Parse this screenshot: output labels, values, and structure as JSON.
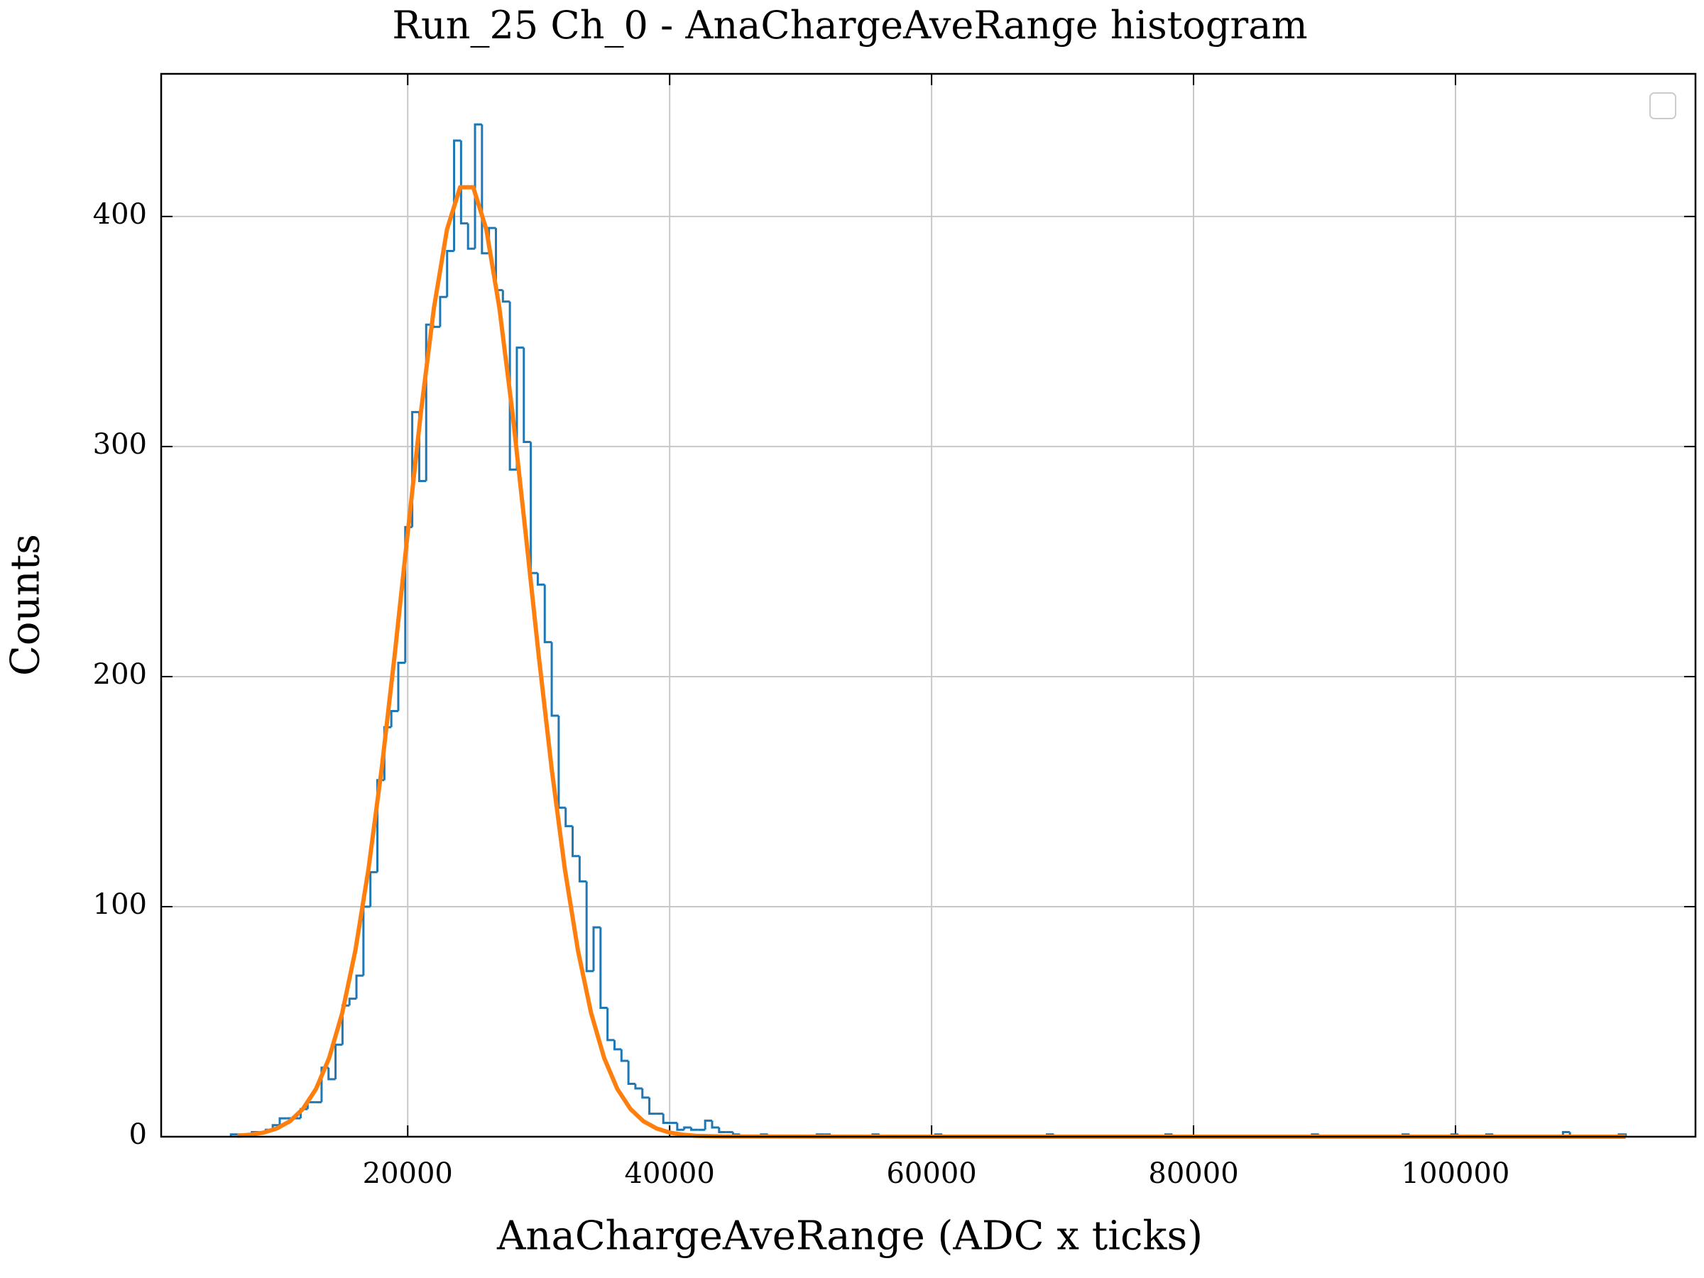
{
  "chart_data": {
    "type": "histogram",
    "title": "Run_25 Ch_0 - AnaChargeAveRange histogram",
    "x_label": "AnaChargeAveRange (ADC x ticks)",
    "y_label": "Counts",
    "color": "#1f77b4",
    "grid": true,
    "legend": "upper right",
    "xlim": [
      1175,
      118325
    ],
    "ylim": [
      0,
      462
    ],
    "xticks": [
      20000,
      40000,
      60000,
      80000,
      100000
    ],
    "yticks": [
      0,
      100,
      200,
      300,
      400
    ],
    "bins": [
      6500,
      7032.5,
      7565,
      8097.5,
      8630,
      9162.5,
      9695,
      10227.5,
      10760,
      11292.5,
      11825,
      12357.5,
      12890,
      13422.5,
      13955,
      14487.5,
      15020,
      15552.5,
      16085,
      16617.5,
      17150,
      17682.5,
      18215,
      18747.5,
      19280,
      19812.5,
      20345,
      20877.5,
      21410,
      21942.5,
      22475,
      23007.5,
      23540,
      24072.5,
      24605,
      25137.5,
      25670,
      26202.5,
      26735,
      27267.5,
      27800,
      28332.5,
      28865,
      29397.5,
      29930,
      30462.5,
      30995,
      31527.5,
      32060,
      32592.5,
      33125,
      33657.5,
      34190,
      34722.5,
      35255,
      35787.5,
      36320,
      36852.5,
      37385,
      37917.5,
      38450,
      38982.5,
      39515,
      40047.5,
      40580,
      41112.5,
      41645,
      42177.5,
      42710,
      43242.5,
      43775,
      44307.5,
      44840,
      45372.5,
      45905,
      46437.5,
      46970,
      47502.5,
      48035,
      48567.5,
      49100,
      49632.5,
      50165,
      50697.5,
      51230,
      51762.5,
      52295,
      52827.5,
      53360,
      53892.5,
      54425,
      54957.5,
      55490,
      56022.5,
      56555,
      57087.5,
      57620,
      58152.5,
      58685,
      59217.5,
      59750,
      60282.5,
      60815,
      61347.5,
      61880,
      62412.5,
      62945,
      63477.5,
      64010,
      64542.5,
      65075,
      65607.5,
      66140,
      66672.5,
      67205,
      67737.5,
      68270,
      68802.5,
      69335,
      69867.5,
      70400,
      70932.5,
      71465,
      71997.5,
      72530,
      73062.5,
      73595,
      74127.5,
      74660,
      75192.5,
      75725,
      76257.5,
      76790,
      77322.5,
      77855,
      78387.5,
      78920,
      79452.5,
      79985,
      80517.5,
      81050,
      81582.5,
      82115,
      82647.5,
      83180,
      83712.5,
      84245,
      84777.5,
      85310,
      85842.5,
      86375,
      86907.5,
      87440,
      87972.5,
      88505,
      89037.5,
      89570,
      90102.5,
      90635,
      91167.5,
      91700,
      92232.5,
      92765,
      93297.5,
      93830,
      94362.5,
      94895,
      95427.5,
      95960,
      96492.5,
      97025,
      97557.5,
      98090,
      98622.5,
      99155,
      99687.5,
      100220,
      100752.5,
      101285,
      101817.5,
      102350,
      102882.5,
      103415,
      103947.5,
      104480,
      105012.5,
      105545,
      106077.5,
      106610,
      107142.5,
      107675,
      108207.5,
      108740,
      109272.5,
      109805,
      110337.5,
      110870,
      111402.5,
      111935,
      112467.5,
      113000
    ],
    "counts": [
      1,
      1,
      1,
      2,
      2,
      3,
      5,
      8,
      8,
      8,
      12,
      15,
      15,
      30,
      25,
      40,
      57,
      60,
      70,
      100,
      115,
      155,
      178,
      185,
      206,
      265,
      315,
      285,
      353,
      352,
      365,
      385,
      433,
      397,
      386,
      440,
      384,
      395,
      368,
      363,
      290,
      343,
      302,
      245,
      240,
      215,
      183,
      143,
      135,
      122,
      111,
      72,
      91,
      56,
      42,
      38,
      33,
      23,
      21,
      17,
      10,
      10,
      6,
      6,
      3,
      4,
      3,
      3,
      7,
      4,
      2,
      2,
      1,
      0,
      0,
      0,
      1,
      0,
      0,
      0,
      0,
      0,
      0,
      0,
      1,
      1,
      0,
      0,
      0,
      0,
      0,
      0,
      1,
      0,
      0,
      0,
      0,
      0,
      0,
      0,
      0,
      1,
      0,
      0,
      0,
      0,
      0,
      0,
      0,
      0,
      0,
      0,
      0,
      0,
      0,
      0,
      0,
      1,
      0,
      0,
      0,
      0,
      0,
      0,
      0,
      0,
      0,
      0,
      0,
      0,
      0,
      0,
      0,
      0,
      1,
      0,
      0,
      0,
      0,
      0,
      0,
      0,
      0,
      0,
      0,
      0,
      0,
      0,
      0,
      0,
      0,
      0,
      0,
      0,
      0,
      1,
      0,
      0,
      0,
      0,
      0,
      0,
      0,
      0,
      0,
      0,
      0,
      0,
      1,
      0,
      0,
      0,
      0,
      0,
      0,
      1,
      0,
      0,
      0,
      0,
      1,
      0,
      0,
      0,
      0,
      0,
      0,
      0,
      0,
      0,
      0,
      2,
      0,
      0,
      0,
      0,
      0,
      0,
      0,
      1
    ],
    "fit": {
      "type": "line",
      "color": "#ff7f0e",
      "x": [
        7000,
        8000,
        9000,
        10000,
        11000,
        12000,
        13000,
        14000,
        15000,
        16000,
        17000,
        18000,
        19000,
        20000,
        21000,
        22000,
        23000,
        24000,
        25000,
        26000,
        27000,
        28000,
        29000,
        30000,
        31000,
        32000,
        33000,
        34000,
        35000,
        36000,
        37000,
        38000,
        39000,
        40000,
        41000,
        42000,
        44000,
        60000,
        113000
      ],
      "values": [
        0.4,
        0.9,
        1.8,
        3.6,
        6.7,
        12.1,
        20.8,
        34.2,
        53.8,
        80.9,
        116.2,
        159.5,
        209.2,
        262.5,
        314.6,
        360.2,
        394.4,
        412.7,
        412.7,
        394.4,
        360.2,
        314.6,
        262.5,
        209.2,
        159.5,
        116.2,
        80.9,
        53.8,
        34.2,
        20.8,
        12.1,
        6.7,
        3.6,
        1.8,
        0.9,
        0.4,
        0.1,
        0,
        0
      ]
    }
  }
}
